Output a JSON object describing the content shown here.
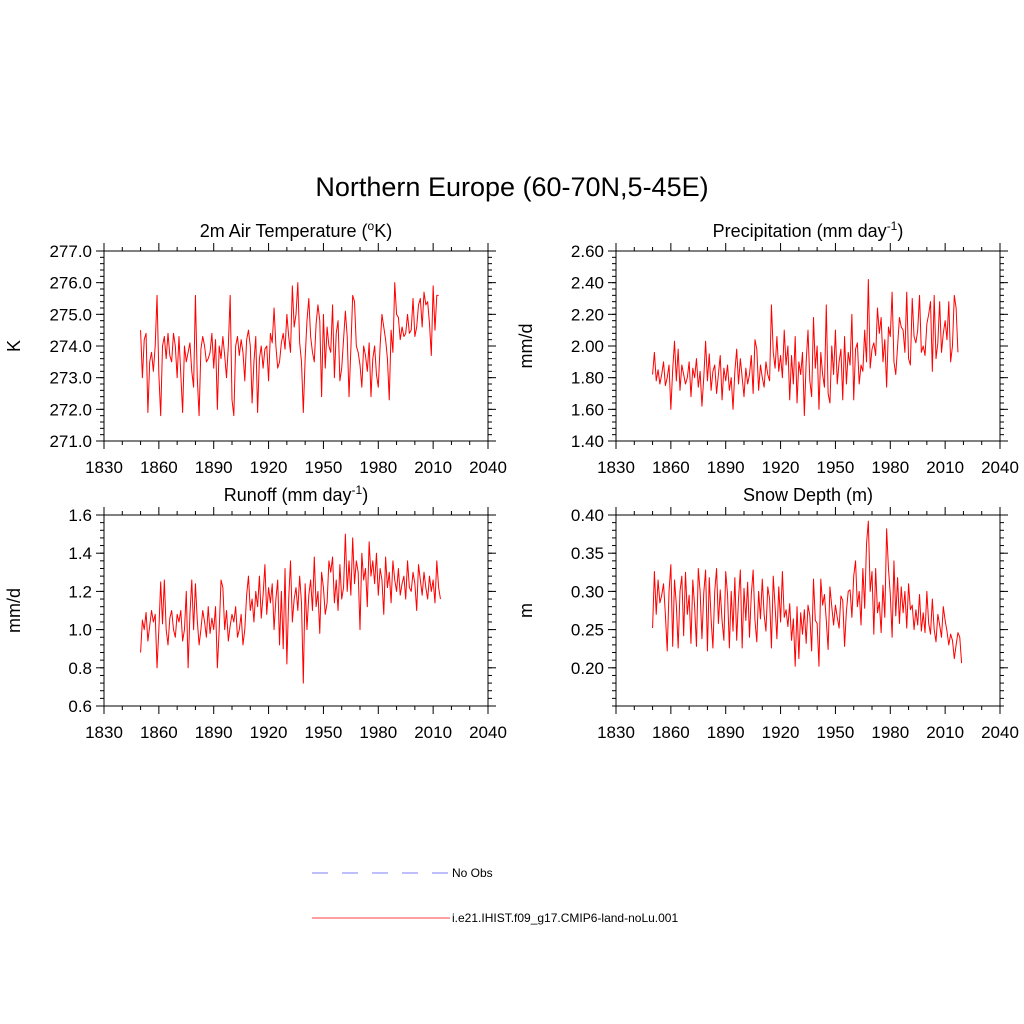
{
  "figure_title": "Northern Europe (60-70N,5-45E)",
  "legend": [
    {
      "label": "No Obs",
      "color": "#9999ff",
      "dash": "dashed"
    },
    {
      "label": "i.e21.IHIST.f09_g17.CMIP6-land-noLu.001",
      "color": "#ff6666",
      "dash": "solid"
    }
  ],
  "chart_data": [
    {
      "type": "line",
      "title": "2m Air Temperature (",
      "title_super": "o",
      "title_tail": "K)",
      "ylabel": "K",
      "xlim": [
        1830,
        2040
      ],
      "ylim": [
        271.0,
        277.0
      ],
      "x_ticks": [
        "1830",
        "1860",
        "1890",
        "1920",
        "1950",
        "1980",
        "2010",
        "2040"
      ],
      "y_ticks": [
        "271.0",
        "272.0",
        "273.0",
        "274.0",
        "275.0",
        "276.0",
        "277.0"
      ],
      "series": [
        {
          "color": "#ff0000",
          "x_start": 1850,
          "x_step": 1,
          "values": [
            274.5,
            273.0,
            274.2,
            274.4,
            271.9,
            273.5,
            273.8,
            273.2,
            274.0,
            275.6,
            273.1,
            271.8,
            274.0,
            274.3,
            273.6,
            274.4,
            273.7,
            273.5,
            274.4,
            274.0,
            273.0,
            274.3,
            273.1,
            271.9,
            274.0,
            273.5,
            273.8,
            274.1,
            273.2,
            272.7,
            275.6,
            273.0,
            271.8,
            273.9,
            274.3,
            274.0,
            273.5,
            273.6,
            273.8,
            274.4,
            273.3,
            274.2,
            272.0,
            274.0,
            273.6,
            274.3,
            273.7,
            273.0,
            274.0,
            275.6,
            272.3,
            271.8,
            274.0,
            274.3,
            273.7,
            274.2,
            273.8,
            272.9,
            274.2,
            274.5,
            274.0,
            272.2,
            273.5,
            274.3,
            271.9,
            273.6,
            274.0,
            273.3,
            273.9,
            274.0,
            272.9,
            274.4,
            274.1,
            275.2,
            274.0,
            273.3,
            273.5,
            274.1,
            274.4,
            273.9,
            275.0,
            274.3,
            273.8,
            275.9,
            274.6,
            275.0,
            276.0,
            274.1,
            273.5,
            271.9,
            273.6,
            274.8,
            275.5,
            274.3,
            273.8,
            273.5,
            274.7,
            275.3,
            274.8,
            272.4,
            275.0,
            273.3,
            274.6,
            274.0,
            273.8,
            275.3,
            273.0,
            274.4,
            274.8,
            272.9,
            273.3,
            274.2,
            275.1,
            274.3,
            272.4,
            273.9,
            275.6,
            275.4,
            274.0,
            273.8,
            273.4,
            272.7,
            274.0,
            273.7,
            273.2,
            274.1,
            272.4,
            273.6,
            274.0,
            273.1,
            272.7,
            274.0,
            275.0,
            274.6,
            274.2,
            273.6,
            272.3,
            274.5,
            273.8,
            276.0,
            275.0,
            274.9,
            274.2,
            274.6,
            274.3,
            274.4,
            275.0,
            274.4,
            274.5,
            275.5,
            274.3,
            274.6,
            275.3,
            275.5,
            274.6,
            275.7,
            275.3,
            275.4,
            274.7,
            273.7,
            275.9,
            274.5,
            275.6,
            275.6
          ]
        }
      ]
    },
    {
      "type": "line",
      "title": "Precipitation (mm day",
      "title_super": "-1",
      "title_tail": ")",
      "ylabel": "mm/d",
      "xlim": [
        1830,
        2040
      ],
      "ylim": [
        1.4,
        2.6
      ],
      "x_ticks": [
        "1830",
        "1860",
        "1890",
        "1920",
        "1950",
        "1980",
        "2010",
        "2040"
      ],
      "y_ticks": [
        "1.40",
        "1.60",
        "1.80",
        "2.00",
        "2.20",
        "2.40",
        "2.60"
      ],
      "series": [
        {
          "color": "#ff0000",
          "x_start": 1850,
          "x_step": 1,
          "values": [
            1.82,
            1.96,
            1.78,
            1.85,
            1.76,
            1.82,
            1.9,
            1.75,
            1.8,
            1.88,
            1.6,
            1.85,
            2.03,
            1.78,
            1.98,
            1.72,
            1.88,
            1.82,
            1.76,
            1.8,
            1.9,
            1.68,
            1.86,
            1.8,
            1.92,
            1.74,
            1.84,
            1.62,
            1.8,
            2.03,
            1.78,
            1.95,
            1.72,
            1.84,
            1.88,
            1.7,
            1.82,
            1.94,
            1.66,
            1.86,
            1.78,
            1.88,
            1.72,
            1.8,
            1.6,
            1.84,
            1.98,
            1.76,
            1.92,
            1.8,
            1.68,
            1.86,
            1.76,
            1.82,
            1.94,
            1.7,
            2.04,
            1.98,
            1.72,
            1.88,
            1.8,
            1.74,
            1.9,
            1.82,
            1.78,
            2.26,
            1.96,
            1.86,
            2.06,
            1.84,
            1.94,
            1.8,
            2.1,
            1.88,
            2.0,
            1.66,
            1.94,
            1.76,
            2.06,
            1.64,
            1.9,
            1.82,
            1.96,
            1.56,
            1.9,
            2.1,
            1.78,
            1.68,
            2.18,
            1.86,
            2.0,
            1.6,
            1.96,
            1.82,
            1.74,
            2.26,
            1.7,
            1.64,
            2.0,
            1.82,
            2.1,
            1.76,
            1.9,
            1.98,
            1.66,
            2.06,
            1.76,
            1.96,
            1.88,
            2.2,
            1.66,
            1.98,
            2.02,
            1.76,
            1.88,
            1.84,
            2.1,
            1.9,
            2.42,
            1.86,
            1.98,
            2.02,
            1.94,
            2.24,
            2.08,
            2.18,
            1.9,
            2.04,
            1.74,
            2.12,
            2.06,
            2.34,
            1.9,
            1.82,
            2.0,
            2.18,
            2.12,
            2.1,
            1.96,
            2.34,
            1.92,
            1.88,
            2.3,
            2.06,
            2.02,
            2.1,
            2.32,
            1.96,
            2.0,
            1.94,
            2.14,
            2.2,
            2.28,
            1.84,
            2.32,
            1.92,
            2.02,
            2.28,
            1.96,
            2.08,
            2.16,
            2.04,
            2.28,
            1.9,
            2.0,
            2.32,
            2.24,
            1.96
          ]
        }
      ]
    },
    {
      "type": "line",
      "title": "Runoff (mm day",
      "title_super": "-1",
      "title_tail": ")",
      "ylabel": "mm/d",
      "xlim": [
        1830,
        2040
      ],
      "ylim": [
        0.6,
        1.6
      ],
      "x_ticks": [
        "1830",
        "1860",
        "1890",
        "1920",
        "1950",
        "1980",
        "2010",
        "2040"
      ],
      "y_ticks": [
        "0.6",
        "0.8",
        "1.0",
        "1.2",
        "1.4",
        "1.6"
      ],
      "series": [
        {
          "color": "#ff0000",
          "x_start": 1850,
          "x_step": 1,
          "values": [
            0.88,
            1.05,
            1.0,
            1.09,
            0.94,
            1.02,
            1.1,
            1.04,
            1.08,
            0.8,
            1.0,
            1.25,
            1.03,
            1.26,
            1.0,
            0.92,
            1.06,
            1.1,
            1.0,
            0.96,
            1.08,
            1.04,
            1.1,
            0.94,
            1.0,
            1.2,
            0.8,
            1.08,
            1.26,
            1.0,
            1.24,
            1.05,
            0.92,
            1.0,
            1.1,
            1.04,
            0.96,
            1.12,
            0.98,
            1.06,
            1.0,
            1.12,
            0.8,
            1.0,
            1.26,
            1.22,
            1.0,
            1.1,
            0.94,
            1.02,
            1.08,
            1.04,
            1.12,
            0.96,
            1.0,
            1.08,
            0.92,
            1.0,
            1.18,
            1.28,
            1.1,
            1.16,
            1.04,
            1.2,
            1.12,
            1.28,
            1.06,
            1.18,
            1.34,
            1.08,
            1.22,
            1.14,
            1.24,
            1.0,
            1.16,
            1.26,
            0.92,
            1.2,
            0.9,
            1.32,
            0.82,
            1.16,
            1.36,
            1.04,
            1.16,
            1.22,
            1.1,
            1.28,
            1.14,
            0.72,
            1.24,
            1.0,
            1.18,
            1.26,
            1.1,
            1.38,
            1.12,
            1.2,
            0.98,
            1.3,
            1.22,
            1.08,
            1.14,
            1.36,
            1.3,
            1.38,
            1.14,
            1.26,
            1.1,
            1.34,
            1.16,
            1.22,
            1.5,
            1.2,
            1.36,
            1.18,
            1.48,
            1.24,
            1.36,
            1.3,
            1.0,
            1.4,
            1.26,
            1.32,
            1.12,
            1.46,
            1.28,
            1.36,
            1.24,
            1.4,
            1.18,
            1.32,
            1.26,
            1.08,
            1.38,
            1.22,
            1.3,
            1.14,
            1.36,
            1.26,
            1.2,
            1.32,
            1.18,
            1.24,
            1.28,
            1.16,
            1.36,
            1.22,
            1.2,
            1.3,
            1.24,
            1.1,
            1.34,
            1.26,
            1.18,
            1.3,
            1.22,
            1.16,
            1.28,
            1.2,
            1.26,
            1.14,
            1.36,
            1.22,
            1.16
          ]
        }
      ]
    },
    {
      "type": "line",
      "title": "Snow Depth (m)",
      "title_super": "",
      "title_tail": "",
      "ylabel": "m",
      "xlim": [
        1830,
        2040
      ],
      "ylim": [
        0.15,
        0.4
      ],
      "x_ticks": [
        "1830",
        "1860",
        "1890",
        "1920",
        "1950",
        "1980",
        "2010",
        "2040"
      ],
      "y_ticks": [
        "0.20",
        "0.25",
        "0.30",
        "0.35",
        "0.40"
      ],
      "series": [
        {
          "color": "#ff0000",
          "x_start": 1850,
          "x_step": 1,
          "values": [
            0.252,
            0.326,
            0.27,
            0.315,
            0.285,
            0.295,
            0.31,
            0.27,
            0.222,
            0.3,
            0.335,
            0.228,
            0.315,
            0.282,
            0.226,
            0.3,
            0.32,
            0.242,
            0.325,
            0.27,
            0.295,
            0.232,
            0.315,
            0.28,
            0.228,
            0.33,
            0.3,
            0.238,
            0.298,
            0.328,
            0.222,
            0.318,
            0.264,
            0.226,
            0.3,
            0.33,
            0.258,
            0.302,
            0.262,
            0.236,
            0.326,
            0.296,
            0.226,
            0.3,
            0.248,
            0.318,
            0.236,
            0.29,
            0.328,
            0.226,
            0.304,
            0.262,
            0.312,
            0.24,
            0.296,
            0.328,
            0.262,
            0.234,
            0.3,
            0.264,
            0.316,
            0.27,
            0.248,
            0.306,
            0.29,
            0.226,
            0.32,
            0.28,
            0.238,
            0.306,
            0.26,
            0.326,
            0.266,
            0.276,
            0.254,
            0.284,
            0.236,
            0.264,
            0.202,
            0.28,
            0.212,
            0.272,
            0.244,
            0.276,
            0.232,
            0.282,
            0.268,
            0.222,
            0.316,
            0.262,
            0.258,
            0.202,
            0.316,
            0.282,
            0.296,
            0.262,
            0.224,
            0.306,
            0.28,
            0.256,
            0.282,
            0.266,
            0.252,
            0.294,
            0.288,
            0.228,
            0.274,
            0.3,
            0.302,
            0.266,
            0.32,
            0.34,
            0.28,
            0.3,
            0.256,
            0.33,
            0.278,
            0.362,
            0.392,
            0.3,
            0.326,
            0.244,
            0.33,
            0.272,
            0.286,
            0.246,
            0.308,
            0.266,
            0.382,
            0.33,
            0.296,
            0.24,
            0.34,
            0.268,
            0.318,
            0.258,
            0.306,
            0.272,
            0.3,
            0.252,
            0.31,
            0.276,
            0.282,
            0.25,
            0.276,
            0.256,
            0.296,
            0.248,
            0.272,
            0.246,
            0.3,
            0.258,
            0.244,
            0.29,
            0.25,
            0.234,
            0.27,
            0.256,
            0.24,
            0.28,
            0.262,
            0.248,
            0.23,
            0.244,
            0.236,
            0.212,
            0.23,
            0.246,
            0.24,
            0.206
          ]
        }
      ]
    }
  ]
}
